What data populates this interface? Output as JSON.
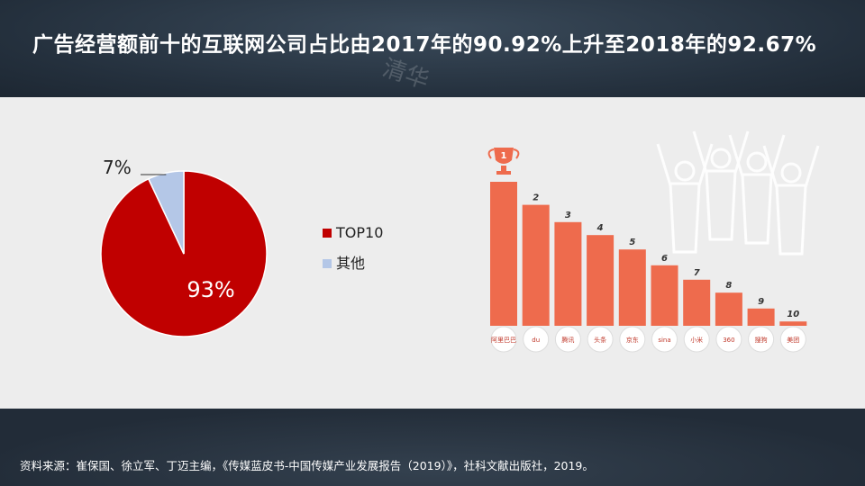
{
  "title": "广告经营额前十的互联网公司占比由2017年的90.92%上升至2018年的92.67%",
  "watermark": "清华",
  "source": "资料来源：崔保国、徐立军、丁迈主编，《传媒蓝皮书-中国传媒产业发展报告（2019）》，社科文献出版社，2019。",
  "colors": {
    "top10": "#c00000",
    "other": "#b4c7e7",
    "bar": "#ee6b4d",
    "trophy": "#ee6b4d"
  },
  "chart_data": [
    {
      "type": "pie",
      "slices": [
        {
          "name": "TOP10",
          "value": 93,
          "label": "93%",
          "color": "#c00000"
        },
        {
          "name": "其他",
          "value": 7,
          "label": "7%",
          "color": "#b4c7e7"
        }
      ],
      "legend": [
        "TOP10",
        "其他"
      ]
    },
    {
      "type": "bar",
      "categories": [
        "1",
        "2",
        "3",
        "4",
        "5",
        "6",
        "7",
        "8",
        "9",
        "10"
      ],
      "logos": [
        "阿里巴巴",
        "du",
        "腾讯",
        "头条",
        "京东",
        "sina",
        "小米",
        "360",
        "搜狗",
        "美团"
      ],
      "values": [
        100,
        84,
        72,
        63,
        53,
        42,
        32,
        23,
        12,
        3
      ],
      "ylim": [
        0,
        100
      ]
    }
  ]
}
